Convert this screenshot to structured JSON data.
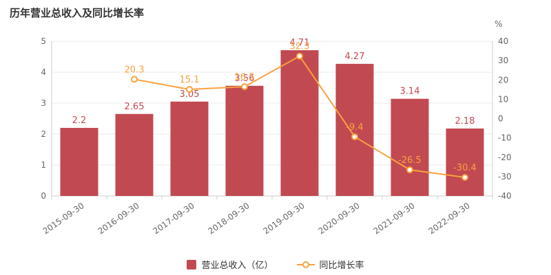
{
  "chart_data": {
    "type": "combo",
    "title": "历年营业总收入及同比增长率",
    "categories": [
      "2015-09-30",
      "2016-09-30",
      "2017-09-30",
      "2018-09-30",
      "2019-09-30",
      "2020-09-30",
      "2021-09-30",
      "2022-09-30"
    ],
    "series": [
      {
        "name": "营业总收入（亿）",
        "type": "bar",
        "axis": "left",
        "color": "#c14a52",
        "values": [
          2.2,
          2.65,
          3.05,
          3.56,
          4.71,
          4.27,
          3.14,
          2.18
        ]
      },
      {
        "name": "同比增长率",
        "type": "line",
        "axis": "right",
        "color": "#f9a13e",
        "values": [
          null,
          20.3,
          15.1,
          16.5,
          32.3,
          -9.4,
          -26.5,
          -30.4
        ]
      }
    ],
    "y_left": {
      "min": 0,
      "max": 5,
      "ticks": [
        0,
        1,
        2,
        3,
        4,
        5
      ]
    },
    "y_right": {
      "min": -40,
      "max": 40,
      "ticks": [
        -40,
        -30,
        -20,
        -10,
        0,
        10,
        20,
        30,
        40
      ],
      "unit": "%"
    },
    "legend_position": "bottom",
    "grid": true
  },
  "colors": {
    "title": "#333333",
    "axis_label": "#666666",
    "grid_line": "#ebebeb",
    "axis_line": "#cccccc"
  }
}
